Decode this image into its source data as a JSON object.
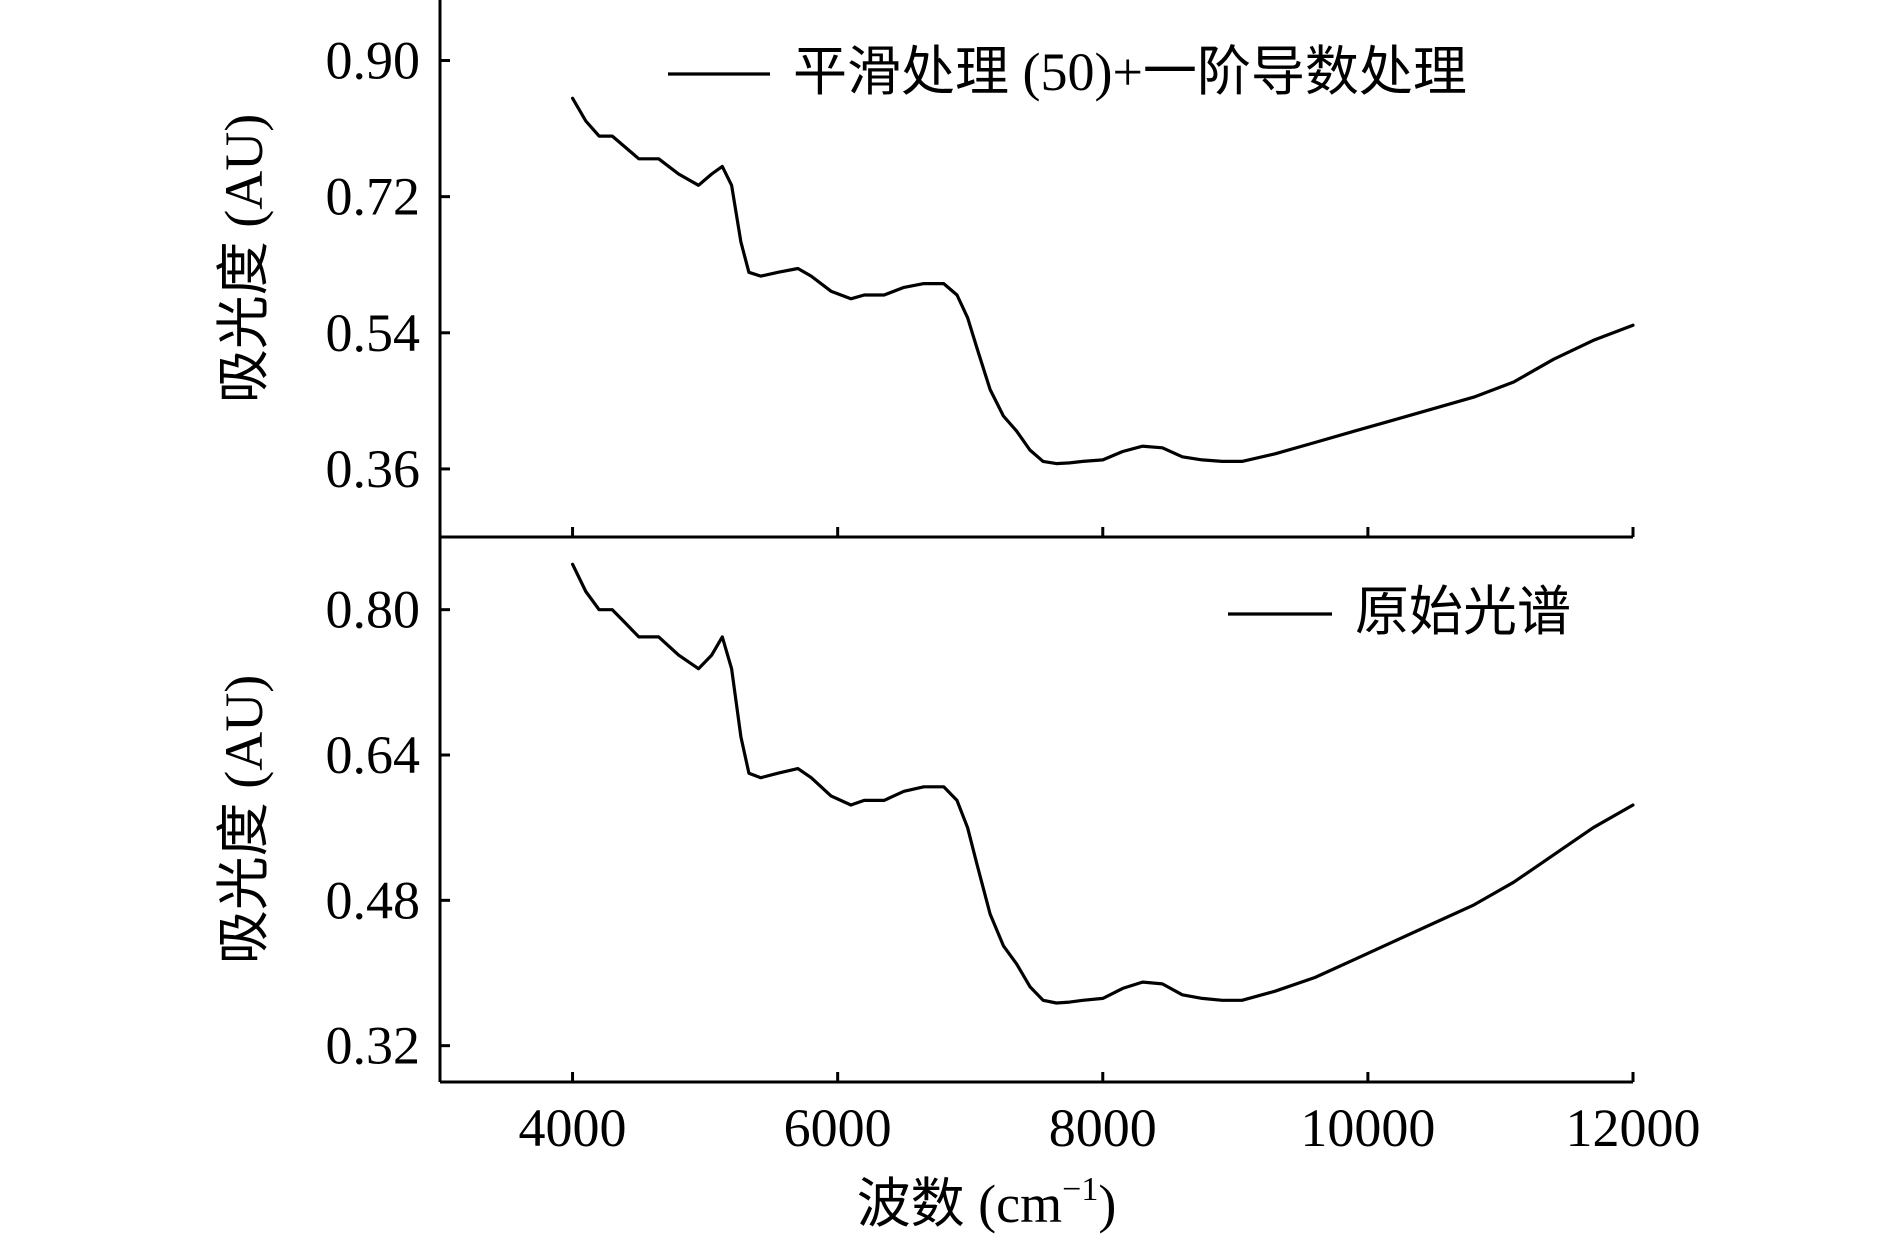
{
  "chart_data": [
    {
      "type": "line",
      "panel": "top",
      "ylabel": "吸光度 (AU)",
      "xlim": [
        3000,
        12000
      ],
      "ylim": [
        0.27,
        0.98
      ],
      "yticks": [
        0.36,
        0.54,
        0.72,
        0.9
      ],
      "ytick_labels": [
        "0.36",
        "0.54",
        "0.72",
        "0.90"
      ],
      "legend_location": "top-right",
      "series": [
        {
          "name": "平滑处理 (50)+一阶导数处理",
          "color": "#000000",
          "x": [
            4000,
            4100,
            4200,
            4300,
            4400,
            4500,
            4650,
            4800,
            4950,
            5050,
            5130,
            5200,
            5270,
            5330,
            5420,
            5550,
            5700,
            5800,
            5950,
            6100,
            6200,
            6350,
            6500,
            6650,
            6800,
            6900,
            6980,
            7050,
            7150,
            7250,
            7350,
            7450,
            7550,
            7650,
            7750,
            7850,
            8000,
            8150,
            8300,
            8450,
            8600,
            8750,
            8900,
            9050,
            9300,
            9600,
            9900,
            10200,
            10500,
            10800,
            11100,
            11400,
            11700,
            12000
          ],
          "values": [
            0.85,
            0.82,
            0.8,
            0.8,
            0.785,
            0.77,
            0.77,
            0.75,
            0.735,
            0.75,
            0.76,
            0.735,
            0.66,
            0.62,
            0.615,
            0.62,
            0.625,
            0.615,
            0.595,
            0.585,
            0.59,
            0.59,
            0.6,
            0.605,
            0.605,
            0.59,
            0.56,
            0.52,
            0.465,
            0.43,
            0.41,
            0.385,
            0.37,
            0.367,
            0.368,
            0.37,
            0.372,
            0.383,
            0.39,
            0.388,
            0.376,
            0.372,
            0.37,
            0.37,
            0.38,
            0.395,
            0.41,
            0.425,
            0.44,
            0.455,
            0.475,
            0.505,
            0.53,
            0.55
          ]
        }
      ]
    },
    {
      "type": "line",
      "panel": "bottom",
      "ylabel": "吸光度 (AU)",
      "xlabel": "波数 (cm",
      "xlabel_sup": "−1",
      "xlabel_end": ")",
      "xlim": [
        3000,
        12000
      ],
      "ylim": [
        0.28,
        0.88
      ],
      "xticks": [
        4000,
        6000,
        8000,
        10000,
        12000
      ],
      "xtick_labels": [
        "4000",
        "6000",
        "8000",
        "10000",
        "12000"
      ],
      "yticks": [
        0.32,
        0.48,
        0.64,
        0.8
      ],
      "ytick_labels": [
        "0.32",
        "0.48",
        "0.64",
        "0.80"
      ],
      "legend_location": "top-right",
      "series": [
        {
          "name": "原始光谱",
          "color": "#000000",
          "x": [
            4000,
            4100,
            4200,
            4300,
            4400,
            4500,
            4650,
            4800,
            4950,
            5050,
            5130,
            5200,
            5270,
            5330,
            5420,
            5550,
            5700,
            5800,
            5950,
            6100,
            6200,
            6350,
            6500,
            6650,
            6800,
            6900,
            6980,
            7050,
            7150,
            7250,
            7350,
            7450,
            7550,
            7650,
            7750,
            7850,
            8000,
            8150,
            8300,
            8450,
            8600,
            8750,
            8900,
            9050,
            9300,
            9600,
            9900,
            10200,
            10500,
            10800,
            11100,
            11400,
            11700,
            12000
          ],
          "values": [
            0.85,
            0.82,
            0.8,
            0.8,
            0.785,
            0.77,
            0.77,
            0.75,
            0.735,
            0.75,
            0.77,
            0.735,
            0.66,
            0.62,
            0.615,
            0.62,
            0.625,
            0.615,
            0.595,
            0.585,
            0.59,
            0.59,
            0.6,
            0.605,
            0.605,
            0.59,
            0.56,
            0.52,
            0.465,
            0.43,
            0.41,
            0.385,
            0.37,
            0.367,
            0.368,
            0.37,
            0.372,
            0.383,
            0.39,
            0.388,
            0.376,
            0.372,
            0.37,
            0.37,
            0.38,
            0.395,
            0.415,
            0.435,
            0.455,
            0.475,
            0.5,
            0.53,
            0.56,
            0.585
          ]
        }
      ]
    }
  ]
}
